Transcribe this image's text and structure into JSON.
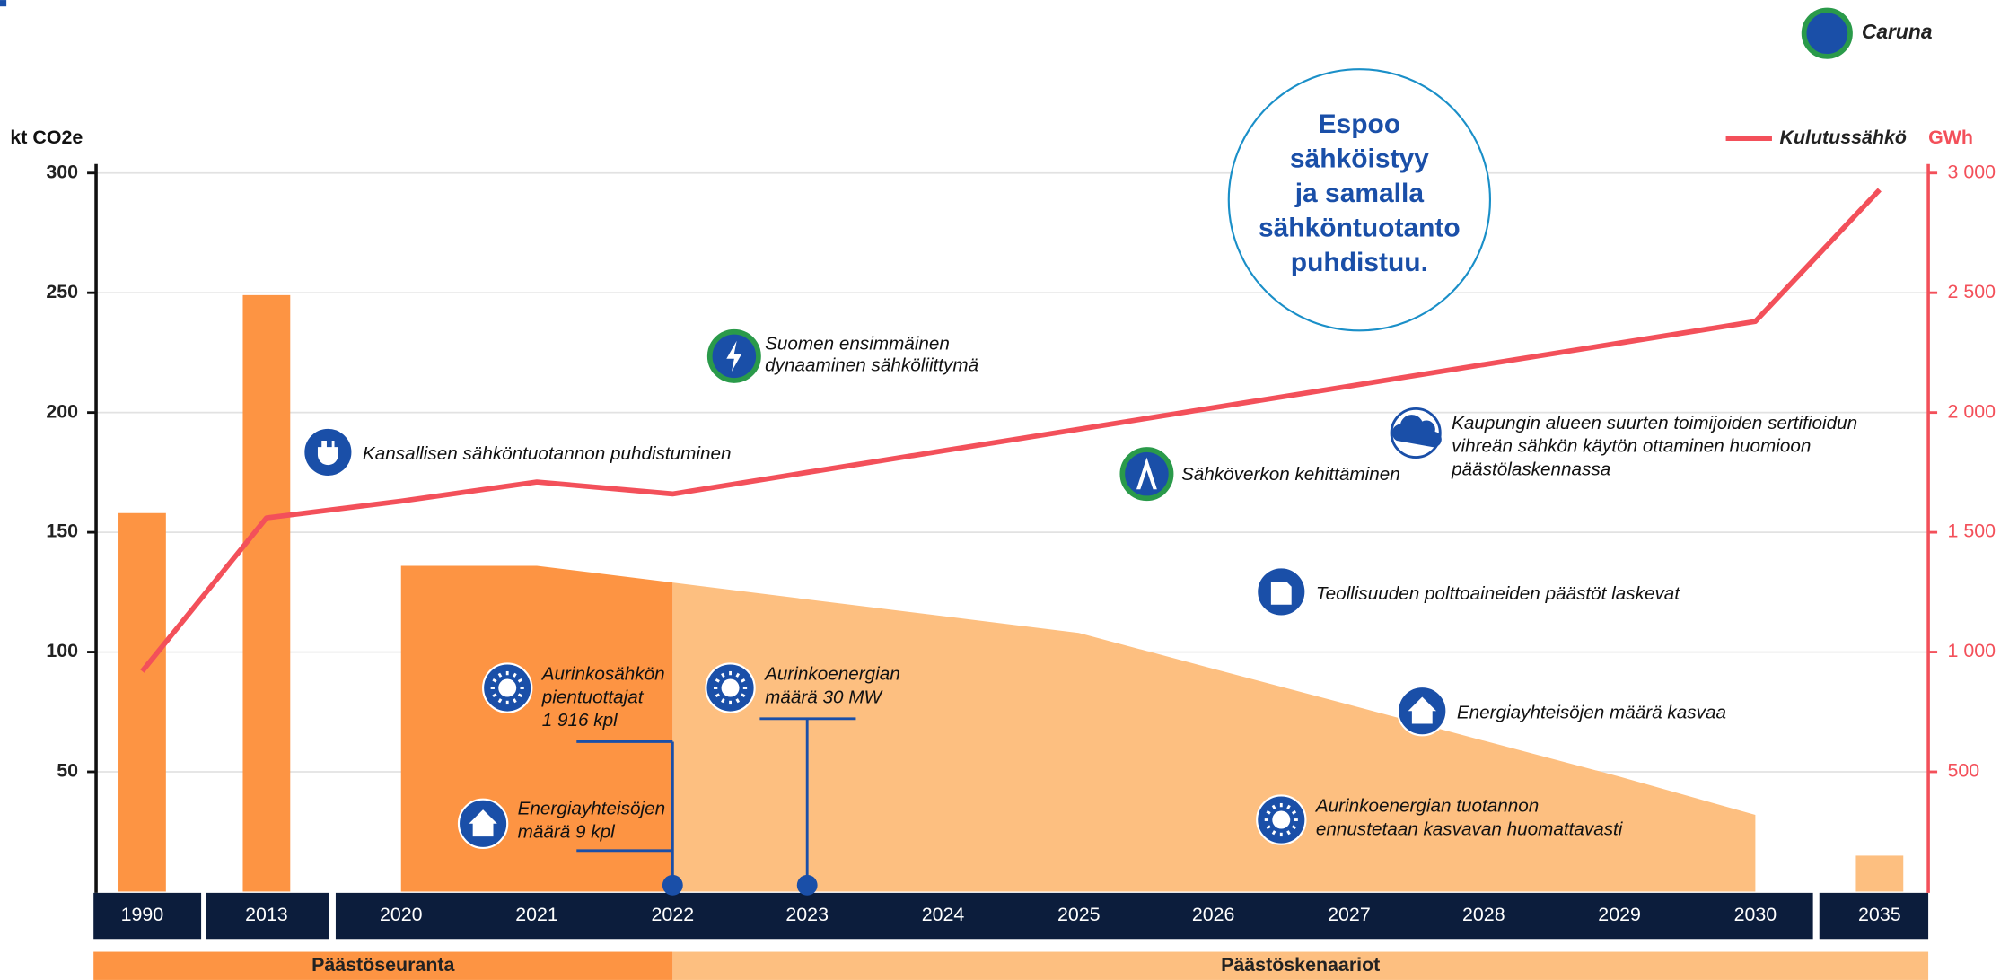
{
  "chart_data": {
    "type": "bar",
    "logo": "Caruna",
    "y_label": "kt CO2e",
    "y2_label": "GWh",
    "callout": [
      "Espoo",
      "sähköistyy",
      "ja samalla",
      "sähköntuotanto",
      "puhdistuu."
    ],
    "phases": [
      "Päästöseuranta",
      "Päästöskenaariot"
    ],
    "categories": [
      "1990",
      "2013",
      "2020",
      "2021",
      "2022",
      "2023",
      "2024",
      "2025",
      "2026",
      "2027",
      "2028",
      "2029",
      "2030",
      "2035"
    ],
    "series": [
      {
        "color": "#fd9443",
        "values": [
          158,
          249,
          null,
          null,
          null,
          null,
          null,
          null,
          null,
          null,
          null,
          null,
          null,
          15
        ]
      },
      {
        "type": "area",
        "color": "#fdbf80",
        "values": [
          null,
          null,
          136,
          136,
          129,
          122,
          115,
          108,
          93,
          78,
          63,
          48,
          32,
          null
        ]
      },
      {
        "name": "Kulutussähkö",
        "type": "line",
        "axis": "y2",
        "color": "#f3505a",
        "values": [
          920,
          1560,
          1630,
          1710,
          1660,
          1750,
          1840,
          1930,
          2020,
          2110,
          2200,
          2290,
          2380,
          2930
        ]
      }
    ],
    "ylim": [
      0,
      300
    ],
    "yticks": [
      50,
      100,
      150,
      200,
      250,
      300
    ],
    "y2lim": [
      0,
      3000
    ],
    "y2ticks": [
      500,
      {
        "value": 1000,
        "label": "1 000"
      },
      {
        "value": 1500,
        "label": "1 500"
      },
      {
        "value": 2000,
        "label": "2 000"
      },
      {
        "value": 2500,
        "label": "2 500"
      },
      {
        "value": 3000,
        "label": "3 000"
      }
    ],
    "grid": true,
    "annotations": [
      {
        "lines": [
          "Kansallisen sähköntuotannon puhdistuminen"
        ]
      },
      {
        "lines": [
          "Suomen ensimmäinen",
          "dynaaminen sähköliittymä"
        ]
      },
      {
        "lines": [
          "Sähköverkon kehittäminen"
        ]
      },
      {
        "lines": [
          "Kaupungin alueen suurten toimijoiden sertifioidun",
          "vihreän sähkön käytön ottaminen huomioon",
          "päästölaskennassa"
        ]
      },
      {
        "lines": [
          "Teollisuuden polttoaineiden päästöt laskevat"
        ]
      },
      {
        "lines": [
          "Energiayhteisöjen määrä kasvaa"
        ]
      },
      {
        "lines": [
          "Aurinkoenergian tuotannon",
          "ennustetaan kasvavan huomattavasti"
        ]
      },
      {
        "lines": [
          "Aurinkosähkön",
          "pientuottajat",
          "1 916 kpl"
        ]
      },
      {
        "lines": [
          "Aurinkoenergian",
          "määrä 30 MW"
        ]
      },
      {
        "lines": [
          "Energiayhteisöjen",
          "määrä 9 kpl"
        ]
      }
    ]
  }
}
